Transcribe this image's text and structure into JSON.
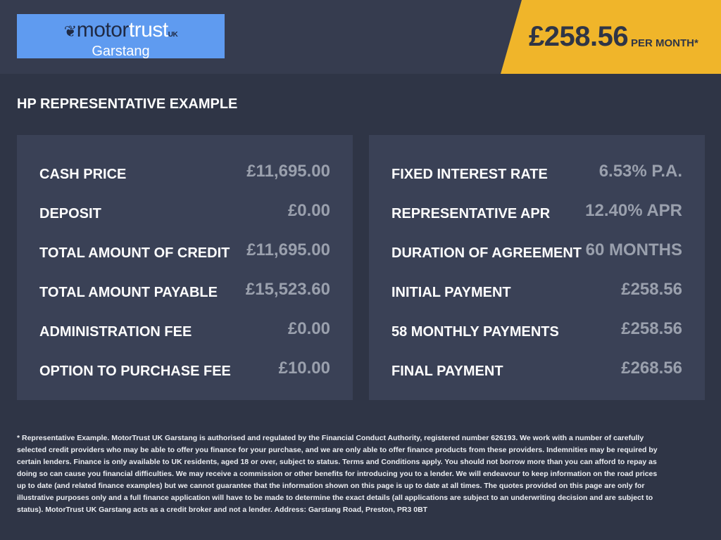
{
  "header": {
    "logo": {
      "brand_a": "motor",
      "brand_b": "trust",
      "brand_suffix": "UK",
      "location": "Garstang"
    },
    "price": "£258.56",
    "price_suffix": "PER MONTH*"
  },
  "title": "HP REPRESENTATIVE EXAMPLE",
  "left": [
    {
      "label": "CASH PRICE",
      "value": "£11,695.00"
    },
    {
      "label": "DEPOSIT",
      "value": "£0.00"
    },
    {
      "label": "TOTAL AMOUNT OF CREDIT",
      "value": "£11,695.00"
    },
    {
      "label": "TOTAL AMOUNT PAYABLE",
      "value": "£15,523.60"
    },
    {
      "label": "ADMINISTRATION FEE",
      "value": "£0.00"
    },
    {
      "label": "OPTION TO PURCHASE FEE",
      "value": "£10.00"
    }
  ],
  "right": [
    {
      "label": "FIXED INTEREST RATE",
      "value": "6.53% P.A."
    },
    {
      "label": "REPRESENTATIVE APR",
      "value": "12.40% APR"
    },
    {
      "label": "DURATION OF AGREEMENT",
      "value": "60 MONTHS"
    },
    {
      "label": "INITIAL PAYMENT",
      "value": "£258.56"
    },
    {
      "label": "58 MONTHLY PAYMENTS",
      "value": "£258.56"
    },
    {
      "label": "FINAL PAYMENT",
      "value": "£268.56"
    }
  ],
  "disclaimer": "* Representative Example. MotorTrust UK Garstang is authorised and regulated by the Financial Conduct Authority, registered number 626193. We work with a number of carefully selected credit providers who may be able to offer you finance for your purchase, and we are only able to offer finance products from these providers. Indemnities may be required by certain lenders. Finance is only available to UK residents, aged 18 or over, subject to status. Terms and Conditions apply. You should not borrow more than you can afford to repay as doing so can cause you financial difficulties. We may receive a commission or other benefits for introducing you to a lender. We will endeavour to keep information on the road prices up to date (and related finance examples) but we cannot guarantee that the information shown on this page is up to date at all times. The quotes provided on this page are only for illustrative purposes only and a full finance application will have to be made to determine the exact details (all applications are subject to an underwriting decision and are subject to status). MotorTrust UK Garstang acts as a credit broker and not a lender. Address: Garstang Road, Preston, PR3 0BT",
  "colors": {
    "background": "#2f3546",
    "panel": "#3a4156",
    "accent": "#f0b52a",
    "logo_bg": "#5f9bf0"
  }
}
